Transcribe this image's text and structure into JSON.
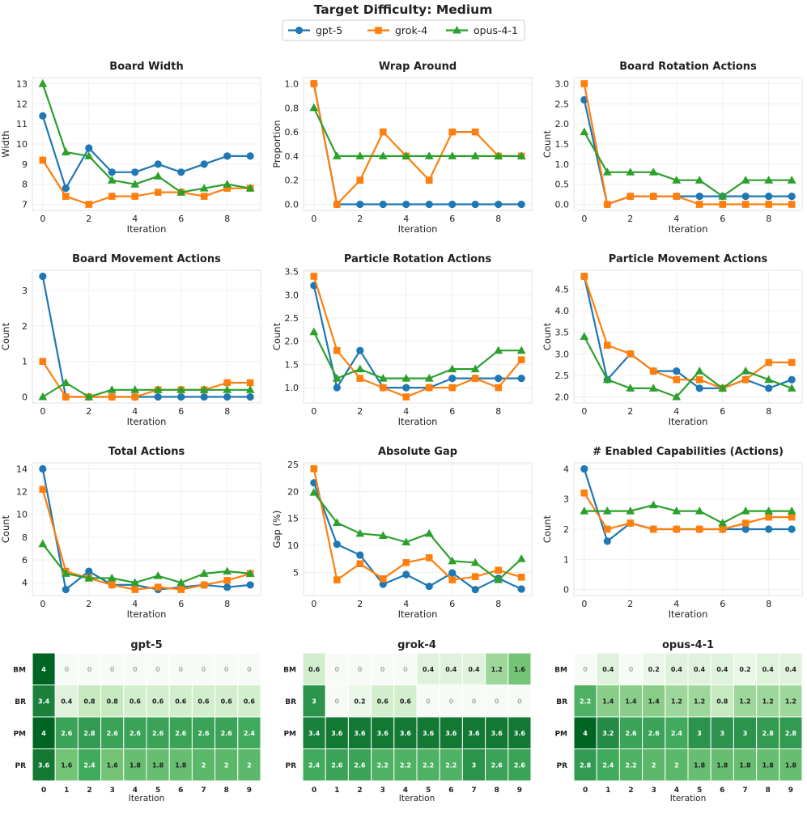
{
  "figure": {
    "title": "Target Difficulty: Medium",
    "legend": [
      {
        "name": "gpt-5",
        "color": "#1f77b4",
        "marker": "circle"
      },
      {
        "name": "grok-4",
        "color": "#ff7f0e",
        "marker": "square"
      },
      {
        "name": "opus-4-1",
        "color": "#2ca02c",
        "marker": "triangle"
      }
    ]
  },
  "chart_data": [
    {
      "type": "line",
      "title": "Board Width",
      "xlabel": "Iteration",
      "ylabel": "Width",
      "x": [
        0,
        1,
        2,
        3,
        4,
        5,
        6,
        7,
        8,
        9
      ],
      "ylim": [
        6.7,
        13.3
      ],
      "yticks": [
        7,
        8,
        9,
        10,
        11,
        12,
        13
      ],
      "ytick_labels": [
        "7",
        "8",
        "9",
        "10",
        "11",
        "12",
        "13"
      ],
      "xticks": [
        0,
        2,
        4,
        6,
        8
      ],
      "series": [
        {
          "name": "gpt-5",
          "values": [
            11.4,
            7.8,
            9.8,
            8.6,
            8.6,
            9.0,
            8.6,
            9.0,
            9.4,
            9.4
          ]
        },
        {
          "name": "grok-4",
          "values": [
            9.2,
            7.4,
            7.0,
            7.4,
            7.4,
            7.6,
            7.6,
            7.4,
            7.8,
            7.8
          ]
        },
        {
          "name": "opus-4-1",
          "values": [
            13.0,
            9.6,
            9.4,
            8.2,
            8.0,
            8.4,
            7.6,
            7.8,
            8.0,
            7.8
          ]
        }
      ]
    },
    {
      "type": "line",
      "title": "Wrap Around",
      "xlabel": "Iteration",
      "ylabel": "Proportion",
      "x": [
        0,
        1,
        2,
        3,
        4,
        5,
        6,
        7,
        8,
        9
      ],
      "ylim": [
        -0.05,
        1.05
      ],
      "yticks": [
        0,
        0.2,
        0.4,
        0.6,
        0.8,
        1.0
      ],
      "ytick_labels": [
        "0.0",
        "0.2",
        "0.4",
        "0.6",
        "0.8",
        "1.0"
      ],
      "xticks": [
        0,
        2,
        4,
        6,
        8
      ],
      "series": [
        {
          "name": "gpt-5",
          "values": [
            1.0,
            0,
            0,
            0,
            0,
            0,
            0,
            0,
            0,
            0
          ]
        },
        {
          "name": "grok-4",
          "values": [
            1.0,
            0,
            0.2,
            0.6,
            0.4,
            0.2,
            0.6,
            0.6,
            0.4,
            0.4
          ]
        },
        {
          "name": "opus-4-1",
          "values": [
            0.8,
            0.4,
            0.4,
            0.4,
            0.4,
            0.4,
            0.4,
            0.4,
            0.4,
            0.4
          ]
        }
      ]
    },
    {
      "type": "line",
      "title": "Board Rotation Actions",
      "xlabel": "Iteration",
      "ylabel": "Count",
      "x": [
        0,
        1,
        2,
        3,
        4,
        5,
        6,
        7,
        8,
        9
      ],
      "ylim": [
        -0.15,
        3.15
      ],
      "yticks": [
        0,
        0.5,
        1.0,
        1.5,
        2.0,
        2.5,
        3.0
      ],
      "ytick_labels": [
        "0.0",
        "0.5",
        "1.0",
        "1.5",
        "2.0",
        "2.5",
        "3.0"
      ],
      "xticks": [
        0,
        2,
        4,
        6,
        8
      ],
      "series": [
        {
          "name": "gpt-5",
          "values": [
            2.6,
            0,
            0.2,
            0.2,
            0.2,
            0.2,
            0.2,
            0.2,
            0.2,
            0.2
          ]
        },
        {
          "name": "grok-4",
          "values": [
            3.0,
            0,
            0.2,
            0.2,
            0.2,
            0,
            0,
            0,
            0,
            0
          ]
        },
        {
          "name": "opus-4-1",
          "values": [
            1.8,
            0.8,
            0.8,
            0.8,
            0.6,
            0.6,
            0.2,
            0.6,
            0.6,
            0.6
          ]
        }
      ]
    },
    {
      "type": "line",
      "title": "Board Movement Actions",
      "xlabel": "Iteration",
      "ylabel": "Count",
      "x": [
        0,
        1,
        2,
        3,
        4,
        5,
        6,
        7,
        8,
        9
      ],
      "ylim": [
        -0.17,
        3.57
      ],
      "yticks": [
        0,
        1,
        2,
        3
      ],
      "ytick_labels": [
        "0",
        "1",
        "2",
        "3"
      ],
      "xticks": [
        0,
        2,
        4,
        6,
        8
      ],
      "series": [
        {
          "name": "gpt-5",
          "values": [
            3.4,
            0,
            0,
            0,
            0,
            0,
            0,
            0,
            0,
            0
          ]
        },
        {
          "name": "grok-4",
          "values": [
            1.0,
            0,
            0,
            0,
            0,
            0.2,
            0.2,
            0.2,
            0.4,
            0.4
          ]
        },
        {
          "name": "opus-4-1",
          "values": [
            0,
            0.4,
            0,
            0.2,
            0.2,
            0.2,
            0.2,
            0.2,
            0.2,
            0.2
          ]
        }
      ]
    },
    {
      "type": "line",
      "title": "Particle Rotation Actions",
      "xlabel": "Iteration",
      "ylabel": "Count",
      "x": [
        0,
        1,
        2,
        3,
        4,
        5,
        6,
        7,
        8,
        9
      ],
      "ylim": [
        0.67,
        3.53
      ],
      "yticks": [
        1.0,
        1.5,
        2.0,
        2.5,
        3.0,
        3.5
      ],
      "ytick_labels": [
        "1.0",
        "1.5",
        "2.0",
        "2.5",
        "3.0",
        "3.5"
      ],
      "xticks": [
        0,
        2,
        4,
        6,
        8
      ],
      "series": [
        {
          "name": "gpt-5",
          "values": [
            3.2,
            1.0,
            1.8,
            1.0,
            1.0,
            1.0,
            1.2,
            1.2,
            1.2,
            1.2
          ]
        },
        {
          "name": "grok-4",
          "values": [
            3.4,
            1.8,
            1.2,
            1.0,
            0.8,
            1.0,
            1.0,
            1.2,
            1.0,
            1.6
          ]
        },
        {
          "name": "opus-4-1",
          "values": [
            2.2,
            1.2,
            1.4,
            1.2,
            1.2,
            1.2,
            1.4,
            1.4,
            1.8,
            1.8
          ]
        }
      ]
    },
    {
      "type": "line",
      "title": "Particle Movement Actions",
      "xlabel": "Iteration",
      "ylabel": "Count",
      "x": [
        0,
        1,
        2,
        3,
        4,
        5,
        6,
        7,
        8,
        9
      ],
      "ylim": [
        1.86,
        4.94
      ],
      "yticks": [
        2.0,
        2.5,
        3.0,
        3.5,
        4.0,
        4.5
      ],
      "ytick_labels": [
        "2.0",
        "2.5",
        "3.0",
        "3.5",
        "4.0",
        "4.5"
      ],
      "xticks": [
        0,
        2,
        4,
        6,
        8
      ],
      "series": [
        {
          "name": "gpt-5",
          "values": [
            4.8,
            2.4,
            3.0,
            2.6,
            2.6,
            2.2,
            2.2,
            2.4,
            2.2,
            2.4
          ]
        },
        {
          "name": "grok-4",
          "values": [
            4.8,
            3.2,
            3.0,
            2.6,
            2.4,
            2.4,
            2.2,
            2.4,
            2.8,
            2.8
          ]
        },
        {
          "name": "opus-4-1",
          "values": [
            3.4,
            2.4,
            2.2,
            2.2,
            2.0,
            2.6,
            2.2,
            2.6,
            2.4,
            2.2
          ]
        }
      ]
    },
    {
      "type": "line",
      "title": "Total Actions",
      "xlabel": "Iteration",
      "ylabel": "Count",
      "x": [
        0,
        1,
        2,
        3,
        4,
        5,
        6,
        7,
        8,
        9
      ],
      "ylim": [
        2.87,
        14.53
      ],
      "yticks": [
        4,
        6,
        8,
        10,
        12,
        14
      ],
      "ytick_labels": [
        "4",
        "6",
        "8",
        "10",
        "12",
        "14"
      ],
      "xticks": [
        0,
        2,
        4,
        6,
        8
      ],
      "series": [
        {
          "name": "gpt-5",
          "values": [
            14.0,
            3.4,
            5.0,
            3.8,
            3.8,
            3.4,
            3.6,
            3.8,
            3.6,
            3.8
          ]
        },
        {
          "name": "grok-4",
          "values": [
            12.2,
            5.0,
            4.4,
            3.8,
            3.4,
            3.6,
            3.4,
            3.8,
            4.2,
            4.8
          ]
        },
        {
          "name": "opus-4-1",
          "values": [
            7.4,
            4.8,
            4.4,
            4.4,
            4.0,
            4.6,
            4.0,
            4.8,
            5.0,
            4.8
          ]
        }
      ]
    },
    {
      "type": "line",
      "title": "Absolute Gap",
      "xlabel": "Iteration",
      "ylabel": "Gap (%)",
      "x": [
        0,
        1,
        2,
        3,
        4,
        5,
        6,
        7,
        8,
        9
      ],
      "ylim": [
        0.7,
        25.3
      ],
      "yticks": [
        5,
        10,
        15,
        20,
        25
      ],
      "ytick_labels": [
        "5",
        "10",
        "15",
        "20",
        "25"
      ],
      "xticks": [
        0,
        2,
        4,
        6,
        8
      ],
      "series": [
        {
          "name": "gpt-5",
          "values": [
            21.6,
            10.2,
            8.2,
            2.8,
            4.6,
            2.4,
            4.9,
            1.8,
            3.9,
            1.9
          ]
        },
        {
          "name": "grok-4",
          "values": [
            24.2,
            3.6,
            6.6,
            3.8,
            6.8,
            7.7,
            3.6,
            4.2,
            5.4,
            4.1
          ]
        },
        {
          "name": "opus-4-1",
          "values": [
            19.8,
            14.2,
            12.2,
            11.8,
            10.6,
            12.2,
            7.1,
            6.8,
            3.6,
            7.5
          ]
        }
      ]
    },
    {
      "type": "line",
      "title": "# Enabled Capabilities (Actions)",
      "xlabel": "Iteration",
      "ylabel": "Count",
      "x": [
        0,
        1,
        2,
        3,
        4,
        5,
        6,
        7,
        8,
        9
      ],
      "ylim": [
        -0.2,
        4.2
      ],
      "yticks": [
        0,
        1,
        2,
        3,
        4
      ],
      "ytick_labels": [
        "0",
        "1",
        "2",
        "3",
        "4"
      ],
      "xticks": [
        0,
        2,
        4,
        6,
        8
      ],
      "series": [
        {
          "name": "gpt-5",
          "values": [
            4.0,
            1.6,
            2.2,
            2.0,
            2.0,
            2.0,
            2.0,
            2.0,
            2.0,
            2.0
          ]
        },
        {
          "name": "grok-4",
          "values": [
            3.2,
            2.0,
            2.2,
            2.0,
            2.0,
            2.0,
            2.0,
            2.2,
            2.4,
            2.4
          ]
        },
        {
          "name": "opus-4-1",
          "values": [
            2.6,
            2.6,
            2.6,
            2.8,
            2.6,
            2.6,
            2.2,
            2.6,
            2.6,
            2.6
          ]
        }
      ]
    },
    {
      "type": "heatmap",
      "title": "gpt-5",
      "xlabel": "Iteration",
      "rows": [
        "BM",
        "BR",
        "PM",
        "PR"
      ],
      "cols": [
        "0",
        "1",
        "2",
        "3",
        "4",
        "5",
        "6",
        "7",
        "8",
        "9"
      ],
      "labels": [
        [
          "4",
          "0",
          "0",
          "0",
          "0",
          "0",
          "0",
          "0",
          "0",
          "0"
        ],
        [
          "3.4",
          "0.4",
          "0.8",
          "0.8",
          "0.6",
          "0.6",
          "0.6",
          "0.6",
          "0.6",
          "0.6"
        ],
        [
          "4",
          "2.6",
          "2.8",
          "2.6",
          "2.6",
          "2.6",
          "2.6",
          "2.6",
          "2.6",
          "2.4"
        ],
        [
          "3.6",
          "1.6",
          "2.4",
          "1.6",
          "1.8",
          "1.8",
          "1.8",
          "2",
          "2",
          "2"
        ]
      ]
    },
    {
      "type": "heatmap",
      "title": "grok-4",
      "xlabel": "Iteration",
      "rows": [
        "BM",
        "BR",
        "PM",
        "PR"
      ],
      "cols": [
        "0",
        "1",
        "2",
        "3",
        "4",
        "5",
        "6",
        "7",
        "8",
        "9"
      ],
      "labels": [
        [
          "0.6",
          "0",
          "0",
          "0",
          "0",
          "0.4",
          "0.4",
          "0.4",
          "1.2",
          "1.6"
        ],
        [
          "3",
          "0",
          "0.2",
          "0.6",
          "0.6",
          "0",
          "0",
          "0",
          "0",
          "0"
        ],
        [
          "3.4",
          "3.6",
          "3.6",
          "3.6",
          "3.6",
          "3.6",
          "3.6",
          "3.6",
          "3.6",
          "3.6"
        ],
        [
          "2.4",
          "2.6",
          "2.6",
          "2.2",
          "2.2",
          "2.2",
          "2.2",
          "3",
          "2.6",
          "2.6"
        ]
      ]
    },
    {
      "type": "heatmap",
      "title": "opus-4-1",
      "xlabel": "Iteration",
      "rows": [
        "BM",
        "BR",
        "PM",
        "PR"
      ],
      "cols": [
        "0",
        "1",
        "2",
        "3",
        "4",
        "5",
        "6",
        "7",
        "8",
        "9"
      ],
      "labels": [
        [
          "0",
          "0.4",
          "0",
          "0.2",
          "0.4",
          "0.4",
          "0.4",
          "0.2",
          "0.4",
          "0.4"
        ],
        [
          "2.2",
          "1.4",
          "1.4",
          "1.4",
          "1.2",
          "1.2",
          "0.8",
          "1.2",
          "1.2",
          "1.2"
        ],
        [
          "4",
          "3.2",
          "2.6",
          "2.6",
          "2.4",
          "3",
          "3",
          "3",
          "2.8",
          "2.8"
        ],
        [
          "2.8",
          "2.4",
          "2.2",
          "2",
          "2",
          "1.8",
          "1.8",
          "1.8",
          "1.8",
          "1.8"
        ]
      ]
    }
  ]
}
